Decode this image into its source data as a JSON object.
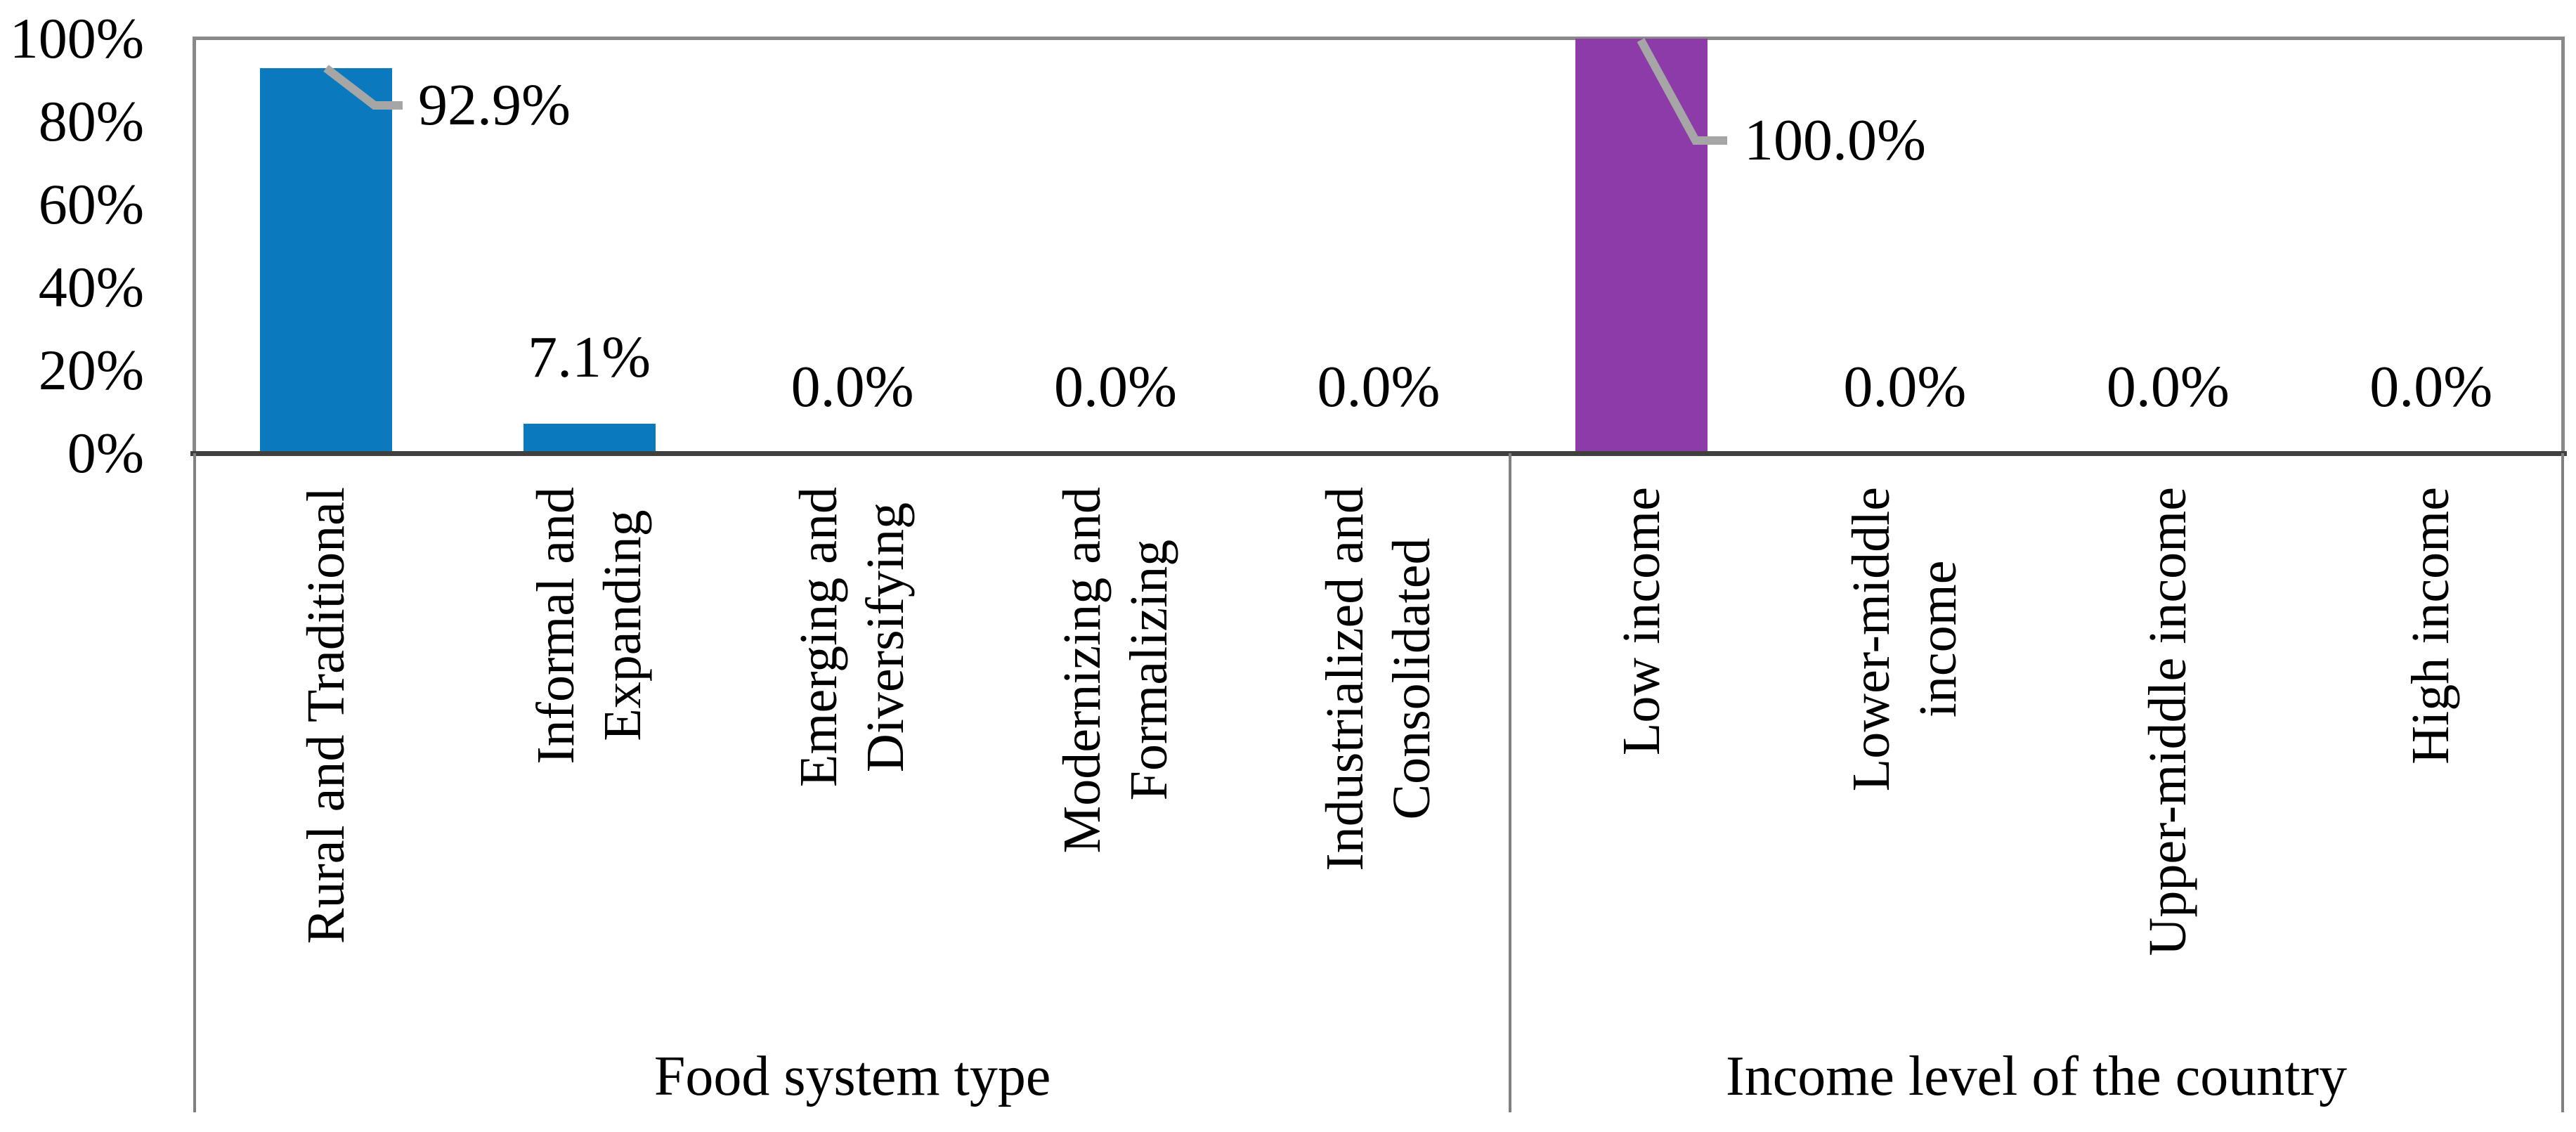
{
  "chart_data": {
    "type": "bar",
    "title": "",
    "xlabel": "",
    "ylabel": "",
    "ylim": [
      0,
      100
    ],
    "grid": false,
    "legend": "none",
    "y_axis_ticks": [
      "100%",
      "80%",
      "60%",
      "40%",
      "20%",
      "0%"
    ],
    "colors": {
      "food_system_series": "#0a79bd",
      "income_series": "#8c3ba9"
    },
    "line_colors": {
      "leader_line": "#a6a6a6",
      "plot_border": "#898989",
      "x_axis": "#3f3f3f",
      "separator": "#808080"
    },
    "groups": [
      {
        "label": "Food system type",
        "color": "#0a79bd",
        "categories": [
          {
            "label": "Rural and Traditional",
            "lines": [
              "Rural and Traditional"
            ],
            "value": 92.9,
            "value_label": "92.9%",
            "callout": true
          },
          {
            "label": "Informal and Expanding",
            "lines": [
              "Informal and",
              "Expanding"
            ],
            "value": 7.1,
            "value_label": "7.1%",
            "callout": false
          },
          {
            "label": "Emerging and Diversifying",
            "lines": [
              "Emerging and",
              "Diversifying"
            ],
            "value": 0.0,
            "value_label": "0.0%",
            "callout": false
          },
          {
            "label": "Modernizing and Formalizing",
            "lines": [
              "Modernizing and",
              "Formalizing"
            ],
            "value": 0.0,
            "value_label": "0.0%",
            "callout": false
          },
          {
            "label": "Industrialized and Consolidated",
            "lines": [
              "Industrialized and",
              "Consolidated"
            ],
            "value": 0.0,
            "value_label": "0.0%",
            "callout": false
          }
        ]
      },
      {
        "label": "Income level of the country",
        "color": "#8c3ba9",
        "categories": [
          {
            "label": "Low income",
            "lines": [
              "Low income"
            ],
            "value": 100.0,
            "value_label": "100.0%",
            "callout": true
          },
          {
            "label": "Lower-middle income",
            "lines": [
              "Lower-middle",
              "income"
            ],
            "value": 0.0,
            "value_label": "0.0%",
            "callout": false
          },
          {
            "label": "Upper-middle income",
            "lines": [
              "Upper-middle income"
            ],
            "value": 0.0,
            "value_label": "0.0%",
            "callout": false
          },
          {
            "label": "High income",
            "lines": [
              "High income"
            ],
            "value": 0.0,
            "value_label": "0.0%",
            "callout": false
          }
        ]
      }
    ]
  }
}
